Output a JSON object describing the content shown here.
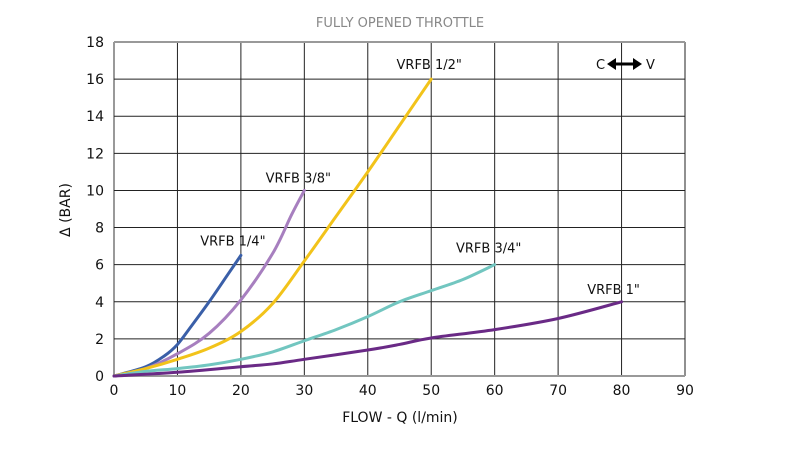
{
  "chart_data": {
    "type": "line",
    "title": "FULLY OPENED THROTTLE",
    "xlabel": "FLOW - Q (l/min)",
    "ylabel": "Δ (BAR)",
    "xlim": [
      0,
      90
    ],
    "ylim": [
      0,
      18
    ],
    "xticks": [
      0,
      10,
      20,
      30,
      40,
      50,
      60,
      70,
      80,
      90
    ],
    "yticks": [
      0,
      2,
      4,
      6,
      8,
      10,
      12,
      14,
      16,
      18
    ],
    "grid": true,
    "annotation": {
      "left": "C",
      "right": "V",
      "icon": "double-arrow-icon"
    },
    "series": [
      {
        "name": "VRFB 1/4\"",
        "color": "#3a5fa8",
        "points": [
          [
            0,
            0
          ],
          [
            5,
            0.5
          ],
          [
            8,
            1.1
          ],
          [
            10,
            1.7
          ],
          [
            12,
            2.6
          ],
          [
            15,
            4
          ],
          [
            18,
            5.5
          ],
          [
            20,
            6.5
          ]
        ]
      },
      {
        "name": "VRFB 3/8\"",
        "color": "#a77fbf",
        "points": [
          [
            0,
            0
          ],
          [
            5,
            0.4
          ],
          [
            10,
            1.2
          ],
          [
            15,
            2.3
          ],
          [
            20,
            4.1
          ],
          [
            25,
            6.6
          ],
          [
            28,
            8.7
          ],
          [
            30,
            10
          ]
        ]
      },
      {
        "name": "VRFB 1/2\"",
        "color": "#f2c31a",
        "points": [
          [
            0,
            0
          ],
          [
            5,
            0.4
          ],
          [
            10,
            0.9
          ],
          [
            15,
            1.5
          ],
          [
            20,
            2.4
          ],
          [
            25,
            3.9
          ],
          [
            30,
            6.2
          ],
          [
            35,
            8.6
          ],
          [
            40,
            11
          ],
          [
            45,
            13.5
          ],
          [
            50,
            16
          ]
        ]
      },
      {
        "name": "VRFB 3/4\"",
        "color": "#72c6c0",
        "points": [
          [
            0,
            0
          ],
          [
            5,
            0.25
          ],
          [
            10,
            0.4
          ],
          [
            15,
            0.6
          ],
          [
            20,
            0.9
          ],
          [
            25,
            1.3
          ],
          [
            30,
            1.9
          ],
          [
            35,
            2.5
          ],
          [
            40,
            3.2
          ],
          [
            45,
            4
          ],
          [
            50,
            4.6
          ],
          [
            55,
            5.2
          ],
          [
            60,
            6
          ]
        ]
      },
      {
        "name": "VRFB 1\"",
        "color": "#6a2a86",
        "points": [
          [
            0,
            0
          ],
          [
            10,
            0.2
          ],
          [
            20,
            0.5
          ],
          [
            25,
            0.65
          ],
          [
            30,
            0.9
          ],
          [
            40,
            1.4
          ],
          [
            45,
            1.7
          ],
          [
            50,
            2.05
          ],
          [
            60,
            2.5
          ],
          [
            70,
            3.1
          ],
          [
            80,
            4
          ]
        ]
      }
    ]
  }
}
